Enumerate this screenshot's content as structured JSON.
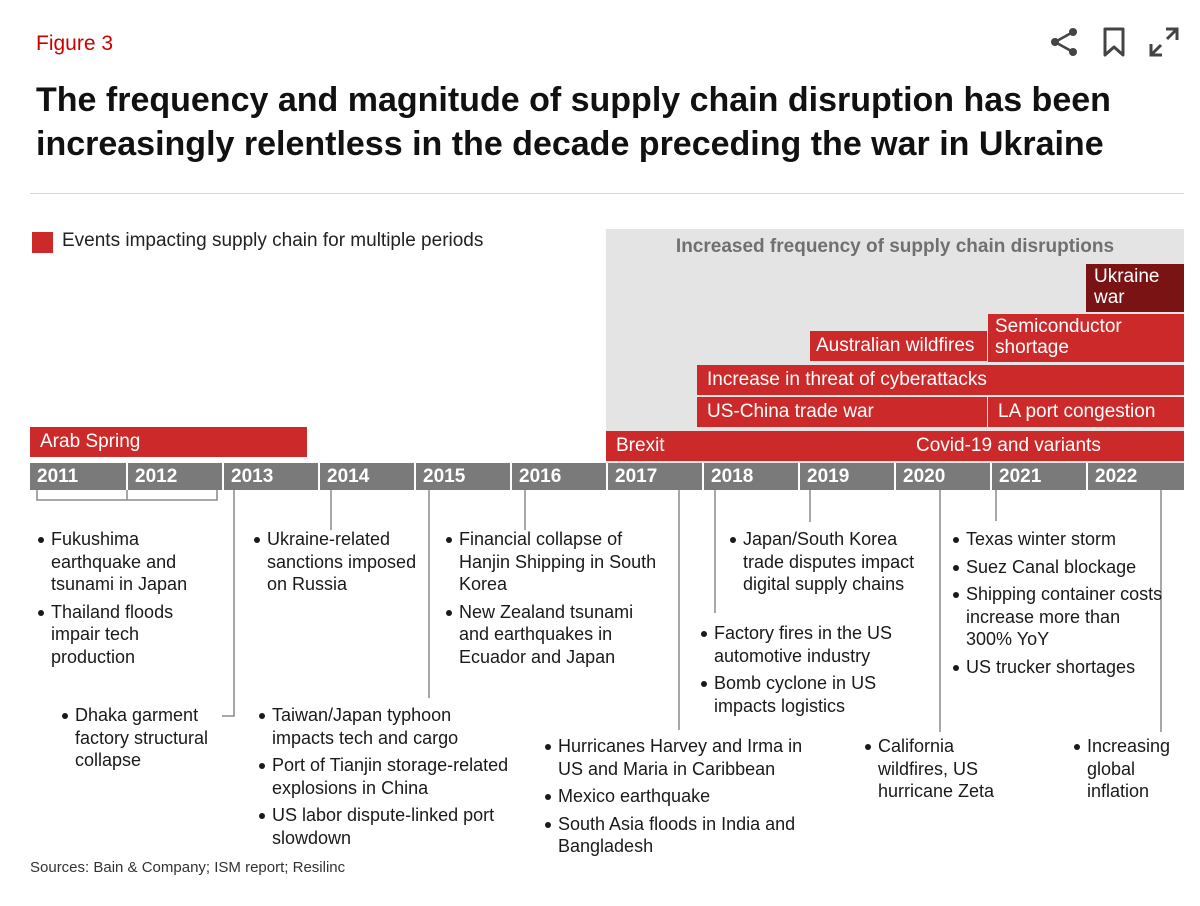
{
  "figure_label": "Figure 3",
  "title": "The frequency and magnitude of supply chain disruption has been increasingly relentless in the decade preceding the war in Ukraine",
  "toolbar": {
    "icons": [
      "share-icon",
      "bookmark-icon",
      "expand-icon"
    ]
  },
  "legend": {
    "label": "Events impacting supply chain for multiple periods",
    "color": "#cc2a2a"
  },
  "highlight_zone": {
    "label": "Increased frequency of supply chain disruptions",
    "from_year": 2017,
    "to_year": 2022
  },
  "colors": {
    "bar": "#cc2a2a",
    "bar_dark": "#7a1414",
    "axis": "#7a7a7a",
    "accent": "#cc0000"
  },
  "timeline": {
    "years": [
      "2011",
      "2012",
      "2013",
      "2014",
      "2015",
      "2016",
      "2017",
      "2018",
      "2019",
      "2020",
      "2021",
      "2022"
    ],
    "bars": [
      {
        "label": "Arab Spring",
        "start": 2011,
        "end": 2013.9
      },
      {
        "label": "Brexit",
        "start": 2017,
        "end": 2020
      },
      {
        "label": "Covid-19 and variants",
        "start": 2020,
        "end": 2022
      },
      {
        "label": "US-China trade war",
        "start": 2018,
        "end": 2020.8
      },
      {
        "label": "LA port congestion",
        "start": 2021,
        "end": 2022
      },
      {
        "label": "Increase in threat of cyberattacks",
        "start": 2018,
        "end": 2022
      },
      {
        "label": "Australian wildfires",
        "start": 2019.2,
        "end": 2020.8
      },
      {
        "label": "Semiconductor shortage",
        "start": 2021,
        "end": 2022
      },
      {
        "label": "Ukraine war",
        "start": 2022,
        "end": 2022
      }
    ]
  },
  "event_groups": [
    {
      "items": [
        "Fukushima earthquake and tsunami in Japan",
        "Thailand floods impair tech production"
      ]
    },
    {
      "items": [
        "Dhaka garment factory structural collapse"
      ]
    },
    {
      "items": [
        "Ukraine-related sanctions imposed on Russia"
      ]
    },
    {
      "items": [
        "Taiwan/Japan typhoon impacts tech and cargo",
        "Port of Tianjin storage-related explosions in China",
        "US labor dispute-linked port slowdown"
      ]
    },
    {
      "items": [
        "Financial collapse of Hanjin Shipping in South Korea",
        "New Zealand tsunami and earthquakes in Ecuador and Japan"
      ]
    },
    {
      "items": [
        "Hurricanes Harvey and Irma in US and Maria in Caribbean",
        "Mexico earthquake",
        "South Asia floods in India and Bangladesh"
      ]
    },
    {
      "items": [
        "Japan/South Korea trade disputes impact digital supply chains"
      ]
    },
    {
      "items": [
        "Factory fires in the US automotive industry",
        "Bomb cyclone in US impacts logistics"
      ]
    },
    {
      "items": [
        "California wildfires, US hurricane Zeta"
      ]
    },
    {
      "items": [
        "Texas winter storm",
        "Suez Canal blockage",
        "Shipping container costs increase more than 300% YoY",
        "US trucker shortages"
      ]
    },
    {
      "items": [
        "Increasing global inflation"
      ]
    }
  ],
  "sources": "Sources: Bain & Company; ISM report; Resilinc"
}
